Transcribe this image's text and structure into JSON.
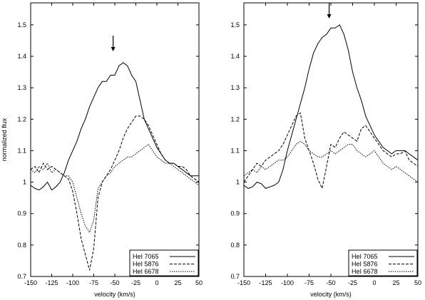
{
  "chart_data": [
    {
      "type": "line",
      "panel": "left",
      "title": "",
      "xlabel": "velocity (km/s)",
      "ylabel": "normalized flux",
      "xlim": [
        -150,
        50
      ],
      "ylim": [
        0.7,
        1.57
      ],
      "x_ticks": [
        -150,
        -125,
        -100,
        -75,
        -50,
        -25,
        0,
        25,
        50
      ],
      "x_tick_labels": [
        "-150",
        "-125",
        "-100",
        "-75",
        "-50",
        "-25",
        "0",
        "25",
        "50"
      ],
      "y_ticks": [
        0.7,
        0.8,
        0.9,
        1.0,
        1.1,
        1.2,
        1.3,
        1.4,
        1.5
      ],
      "y_tick_labels": [
        "0.7",
        "0.8",
        "0.9",
        "1",
        "1.1",
        "1.2",
        "1.3",
        "1.4",
        "1.5"
      ],
      "grid": false,
      "legend": "bottom-right",
      "arrow_x": -52,
      "series": [
        {
          "name": "HeI 7065",
          "dash": "solid",
          "x": [
            -150,
            -145,
            -140,
            -135,
            -130,
            -125,
            -120,
            -115,
            -110,
            -105,
            -100,
            -95,
            -90,
            -85,
            -80,
            -75,
            -70,
            -65,
            -60,
            -55,
            -50,
            -45,
            -40,
            -35,
            -30,
            -25,
            -20,
            -15,
            -10,
            -5,
            0,
            5,
            10,
            15,
            20,
            25,
            30,
            35,
            40,
            45,
            50
          ],
          "y": [
            0.99,
            0.98,
            0.975,
            0.985,
            1.0,
            0.975,
            0.985,
            1.0,
            1.03,
            1.07,
            1.1,
            1.13,
            1.17,
            1.2,
            1.24,
            1.27,
            1.3,
            1.32,
            1.32,
            1.34,
            1.34,
            1.37,
            1.38,
            1.37,
            1.34,
            1.32,
            1.26,
            1.2,
            1.17,
            1.14,
            1.11,
            1.09,
            1.07,
            1.06,
            1.06,
            1.05,
            1.04,
            1.03,
            1.02,
            1.02,
            1.02
          ]
        },
        {
          "name": "HeI 5876",
          "dash": "dashed",
          "x": [
            -150,
            -145,
            -140,
            -135,
            -130,
            -125,
            -120,
            -115,
            -110,
            -105,
            -100,
            -95,
            -90,
            -85,
            -80,
            -75,
            -70,
            -65,
            -60,
            -55,
            -50,
            -45,
            -40,
            -35,
            -30,
            -25,
            -20,
            -15,
            -10,
            -5,
            0,
            5,
            10,
            15,
            20,
            25,
            30,
            35,
            40,
            45,
            50
          ],
          "y": [
            1.04,
            1.05,
            1.03,
            1.06,
            1.04,
            1.05,
            1.04,
            1.03,
            1.02,
            1.01,
            0.97,
            0.9,
            0.82,
            0.77,
            0.72,
            0.79,
            0.95,
            1.0,
            1.02,
            1.04,
            1.07,
            1.1,
            1.14,
            1.17,
            1.19,
            1.21,
            1.21,
            1.2,
            1.18,
            1.15,
            1.12,
            1.09,
            1.07,
            1.06,
            1.06,
            1.05,
            1.05,
            1.04,
            1.02,
            1.01,
            1.0
          ]
        },
        {
          "name": "HeI 6678",
          "dash": "dotted",
          "x": [
            -150,
            -145,
            -140,
            -135,
            -130,
            -125,
            -120,
            -115,
            -110,
            -105,
            -100,
            -95,
            -90,
            -85,
            -80,
            -75,
            -70,
            -65,
            -60,
            -55,
            -50,
            -45,
            -40,
            -35,
            -30,
            -25,
            -20,
            -15,
            -10,
            -5,
            0,
            5,
            10,
            15,
            20,
            25,
            30,
            35,
            40,
            45,
            50
          ],
          "y": [
            1.04,
            1.03,
            1.05,
            1.04,
            1.06,
            1.03,
            1.04,
            1.03,
            1.02,
            1.02,
            1.0,
            0.95,
            0.9,
            0.86,
            0.84,
            0.88,
            0.98,
            1.0,
            1.02,
            1.03,
            1.05,
            1.06,
            1.07,
            1.08,
            1.08,
            1.09,
            1.1,
            1.11,
            1.12,
            1.1,
            1.08,
            1.07,
            1.06,
            1.06,
            1.05,
            1.04,
            1.03,
            1.02,
            1.01,
            1.0,
            0.99
          ]
        }
      ]
    },
    {
      "type": "line",
      "panel": "right",
      "title": "",
      "xlabel": "velocity (km/s)",
      "ylabel": "",
      "xlim": [
        -150,
        50
      ],
      "ylim": [
        0.7,
        1.57
      ],
      "x_ticks": [
        -150,
        -125,
        -100,
        -75,
        -50,
        -25,
        0,
        25,
        50
      ],
      "x_tick_labels": [
        "-150",
        "-125",
        "-100",
        "-75",
        "-50",
        "-25",
        "0",
        "25",
        "50"
      ],
      "y_ticks": [
        0.7,
        0.8,
        0.9,
        1.0,
        1.1,
        1.2,
        1.3,
        1.4,
        1.5
      ],
      "y_tick_labels": [
        "0.7",
        "0.8",
        "0.9",
        "1",
        "1.1",
        "1.2",
        "1.3",
        "1.4",
        "1.5"
      ],
      "grid": false,
      "legend": "bottom-right",
      "arrow_x": -52,
      "series": [
        {
          "name": "HeI 7065",
          "dash": "solid",
          "x": [
            -150,
            -145,
            -140,
            -135,
            -130,
            -125,
            -120,
            -115,
            -110,
            -105,
            -100,
            -95,
            -90,
            -85,
            -80,
            -75,
            -70,
            -65,
            -60,
            -55,
            -50,
            -45,
            -40,
            -35,
            -30,
            -25,
            -20,
            -15,
            -10,
            -5,
            0,
            5,
            10,
            15,
            20,
            25,
            30,
            35,
            40,
            45,
            50
          ],
          "y": [
            0.99,
            0.98,
            0.985,
            1.0,
            0.995,
            0.98,
            0.985,
            0.99,
            1.0,
            1.04,
            1.1,
            1.15,
            1.2,
            1.25,
            1.3,
            1.36,
            1.41,
            1.44,
            1.46,
            1.47,
            1.49,
            1.49,
            1.5,
            1.47,
            1.42,
            1.35,
            1.3,
            1.26,
            1.21,
            1.18,
            1.15,
            1.13,
            1.11,
            1.1,
            1.09,
            1.1,
            1.1,
            1.1,
            1.09,
            1.08,
            1.07
          ]
        },
        {
          "name": "HeI 5876",
          "dash": "dashed",
          "x": [
            -150,
            -145,
            -140,
            -135,
            -130,
            -125,
            -120,
            -115,
            -110,
            -105,
            -100,
            -95,
            -90,
            -85,
            -80,
            -75,
            -70,
            -65,
            -60,
            -55,
            -50,
            -45,
            -40,
            -35,
            -30,
            -25,
            -20,
            -15,
            -10,
            -5,
            0,
            5,
            10,
            15,
            20,
            25,
            30,
            35,
            40,
            45,
            50
          ],
          "y": [
            1.0,
            1.02,
            1.04,
            1.06,
            1.05,
            1.07,
            1.08,
            1.09,
            1.1,
            1.12,
            1.15,
            1.18,
            1.21,
            1.22,
            1.14,
            1.1,
            1.06,
            1.01,
            0.98,
            1.05,
            1.12,
            1.11,
            1.14,
            1.16,
            1.15,
            1.14,
            1.13,
            1.17,
            1.18,
            1.16,
            1.14,
            1.12,
            1.1,
            1.09,
            1.08,
            1.09,
            1.09,
            1.1,
            1.07,
            1.06,
            1.05
          ]
        },
        {
          "name": "HeI 6678",
          "dash": "dotted",
          "x": [
            -150,
            -145,
            -140,
            -135,
            -130,
            -125,
            -120,
            -115,
            -110,
            -105,
            -100,
            -95,
            -90,
            -85,
            -80,
            -75,
            -70,
            -65,
            -60,
            -55,
            -50,
            -45,
            -40,
            -35,
            -30,
            -25,
            -20,
            -15,
            -10,
            -5,
            0,
            5,
            10,
            15,
            20,
            25,
            30,
            35,
            40,
            45,
            50
          ],
          "y": [
            1.02,
            1.03,
            1.04,
            1.03,
            1.05,
            1.04,
            1.05,
            1.06,
            1.07,
            1.07,
            1.08,
            1.1,
            1.12,
            1.13,
            1.12,
            1.1,
            1.09,
            1.08,
            1.08,
            1.09,
            1.1,
            1.09,
            1.1,
            1.11,
            1.12,
            1.12,
            1.1,
            1.09,
            1.08,
            1.09,
            1.1,
            1.08,
            1.06,
            1.05,
            1.04,
            1.05,
            1.04,
            1.03,
            1.02,
            1.01,
            1.0
          ]
        }
      ]
    }
  ]
}
